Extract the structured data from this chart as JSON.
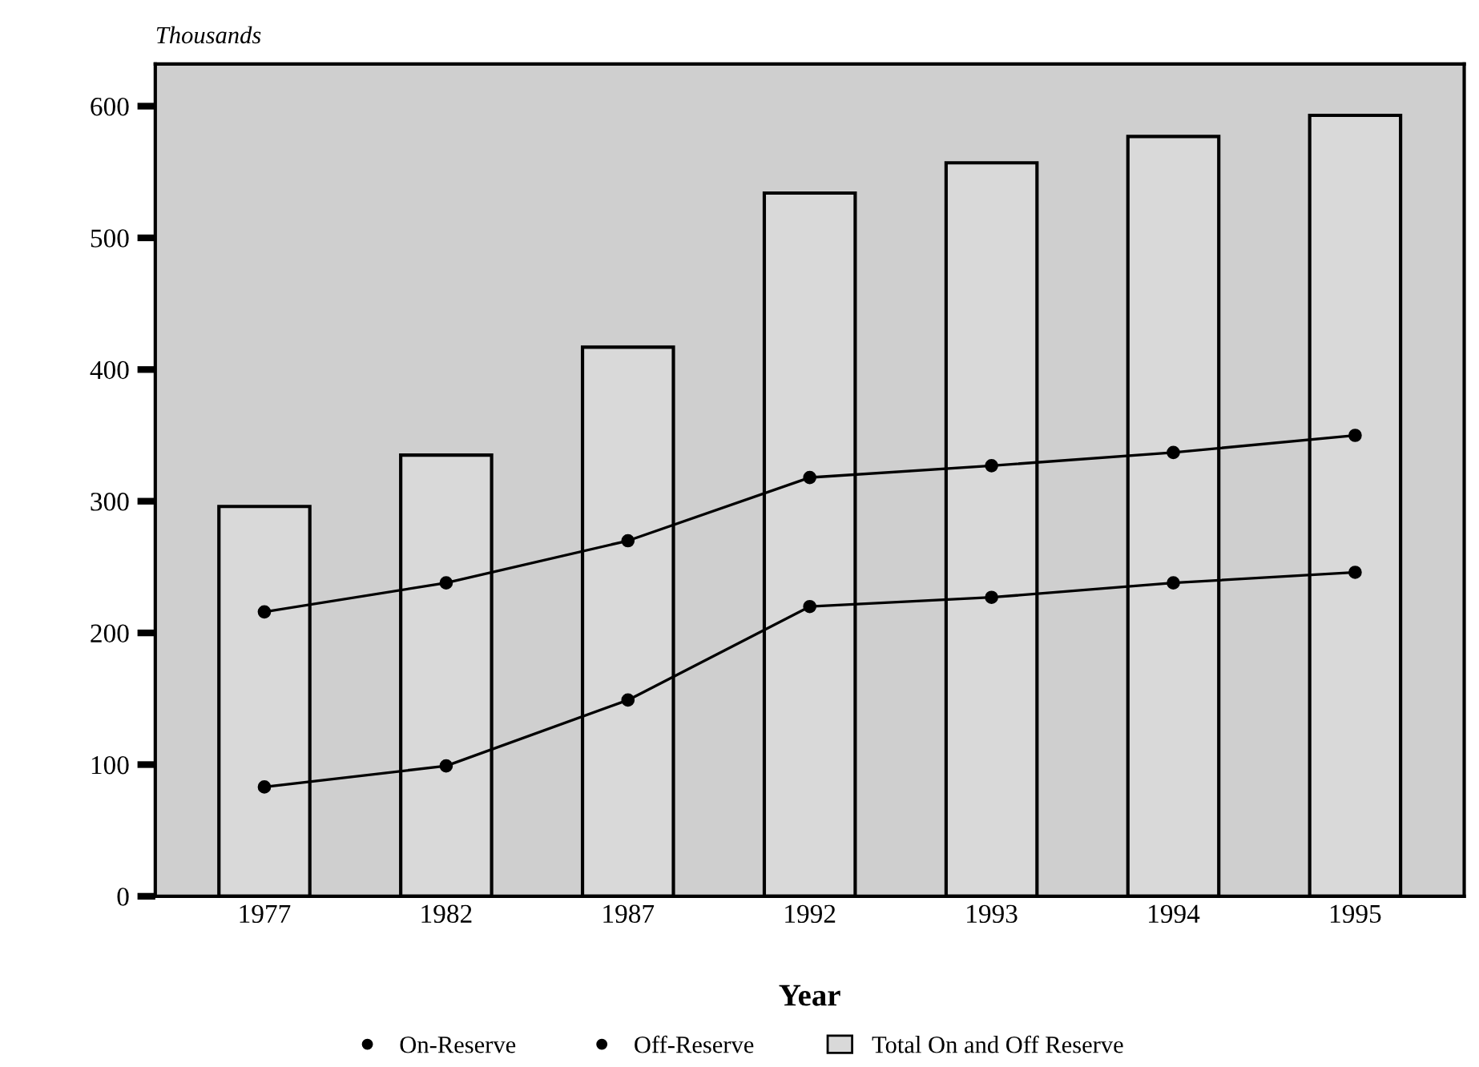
{
  "chart_data": {
    "type": "bar",
    "ylabel": "Thousands",
    "xlabel": "Year",
    "categories": [
      "1977",
      "1982",
      "1987",
      "1992",
      "1993",
      "1994",
      "1995"
    ],
    "series": [
      {
        "name": "On-Reserve",
        "type": "line",
        "color": "#000000",
        "values": [
          216,
          238,
          270,
          318,
          327,
          337,
          350
        ]
      },
      {
        "name": "Off-Reserve",
        "type": "line",
        "color": "#000000",
        "values": [
          83,
          99,
          149,
          220,
          227,
          238,
          246
        ]
      },
      {
        "name": "Total On and Off Reserve",
        "color": "#d9d9d9",
        "values": [
          296,
          335,
          417,
          534,
          557,
          577,
          593
        ]
      }
    ],
    "ylim": [
      0,
      632
    ],
    "yticks": [
      0,
      100,
      200,
      300,
      400,
      500,
      600
    ],
    "marker": "circle",
    "line_style": "solid",
    "grid": false,
    "legend": "bottom"
  }
}
